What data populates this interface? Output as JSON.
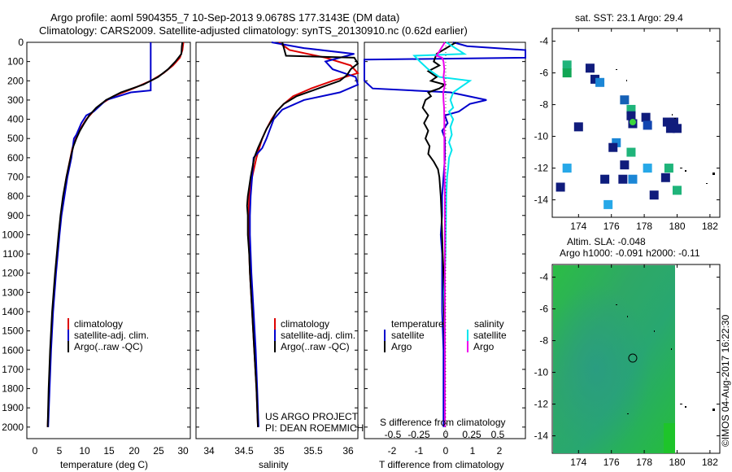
{
  "header": {
    "line1": "Argo profile: aoml 5904355_7 10-Sep-2013 9.0678S 177.3143E (DM data)",
    "line2": "Climatology: CARS2009. Satellite-adjusted climatology: synTS_20130910.nc (0.62d earlier)"
  },
  "colors": {
    "climatology": "#dd0000",
    "satellite": "#0000cc",
    "argo": "#000000",
    "sal_satellite": "#00e5ee",
    "sal_argo": "#ee00ee"
  },
  "panels": {
    "temperature": {
      "xlabel": "temperature (deg C)",
      "xticks": [
        "0",
        "5",
        "10",
        "15",
        "20",
        "25",
        "30"
      ],
      "legend": [
        "climatology",
        "satellite-adj. clim.",
        "Argo(..raw -QC)"
      ]
    },
    "salinity": {
      "xlabel": "salinity",
      "xticks": [
        "34",
        "34.5",
        "35",
        "35.5",
        "36"
      ],
      "legend": [
        "climatology",
        "satellite-adj. clim.",
        "Argo(..raw -QC)"
      ],
      "credit1": "US ARGO PROJECT",
      "credit2": "PI: DEAN ROEMMICH"
    },
    "difference": {
      "xlabel": "T difference from climatology",
      "toplabel": "S difference from climatology",
      "top_ticks": [
        "-0.5",
        "-0.25",
        "0",
        "0.25",
        "0.5"
      ],
      "bottom_ticks": [
        "-2",
        "-1",
        "0",
        "1",
        "2"
      ],
      "legend_temp_title": "temperature",
      "legend_sal_title": "salinity",
      "legend_temp": [
        "satellite",
        "Argo"
      ],
      "legend_sal": [
        "satellite",
        "Argo"
      ]
    },
    "yticks": [
      "0",
      "100",
      "200",
      "300",
      "400",
      "500",
      "600",
      "700",
      "800",
      "900",
      "1000",
      "1100",
      "1200",
      "1300",
      "1400",
      "1500",
      "1600",
      "1700",
      "1800",
      "1900",
      "2000"
    ]
  },
  "map_sst": {
    "title": "sat. SST: 23.1  Argo: 29.4",
    "yticks": [
      "-4",
      "-6",
      "-8",
      "-10",
      "-12",
      "-14"
    ],
    "xticks": [
      "174",
      "176",
      "178",
      "180",
      "182"
    ]
  },
  "map_sla": {
    "title1": "Altim. SLA: -0.048",
    "title2": "Argo h1000: -0.091  h2000: -0.11",
    "yticks": [
      "-4",
      "-6",
      "-8",
      "-10",
      "-12",
      "-14"
    ],
    "xticks": [
      "174",
      "176",
      "178",
      "180",
      "182"
    ]
  },
  "stamp": "©IMOS 04-Aug-2017 16:22:30",
  "chart_data": [
    {
      "type": "line",
      "panel": "temperature",
      "xlabel": "temperature (deg C)",
      "ylabel": "",
      "xlim": [
        -2,
        31
      ],
      "ylim": [
        2060,
        0
      ],
      "series": [
        {
          "name": "climatology",
          "color": "#dd0000",
          "depth": [
            0,
            40,
            80,
            120,
            160,
            200,
            240,
            280,
            320,
            360,
            400,
            450,
            500,
            550,
            600,
            700,
            800,
            900,
            1000,
            1200,
            1400,
            1600,
            1800,
            2000
          ],
          "values": [
            29.6,
            29.4,
            28.9,
            27.5,
            25.6,
            23.0,
            19.5,
            15.5,
            13.0,
            11.4,
            10.0,
            8.8,
            7.9,
            7.2,
            6.8,
            6.0,
            5.4,
            4.9,
            4.5,
            3.8,
            3.2,
            2.8,
            2.5,
            2.2
          ]
        },
        {
          "name": "satellite-adj. clim.",
          "color": "#0000cc",
          "depth": [
            0,
            250,
            260,
            300,
            360,
            380,
            420,
            480,
            500,
            600,
            700,
            800,
            900,
            1000,
            1200,
            1400,
            1600,
            1800,
            2000
          ],
          "values": [
            23.0,
            23.0,
            19.0,
            14.0,
            11.5,
            10.0,
            9.0,
            8.0,
            7.5,
            7.0,
            6.2,
            5.6,
            5.0,
            4.6,
            3.9,
            3.3,
            2.9,
            2.6,
            2.3
          ]
        },
        {
          "name": "Argo(..raw -QC)",
          "color": "#000000",
          "depth": [
            0,
            20,
            60,
            100,
            140,
            180,
            220,
            260,
            300,
            340,
            380,
            420,
            460,
            500,
            540,
            580,
            650,
            700,
            800,
            900,
            1000,
            1200,
            1400,
            1600,
            1800,
            2000
          ],
          "values": [
            29.4,
            29.3,
            29.2,
            28.0,
            26.5,
            24.5,
            21.5,
            17.0,
            14.0,
            12.0,
            10.6,
            9.6,
            8.7,
            8.0,
            7.4,
            7.0,
            6.4,
            6.0,
            5.3,
            4.8,
            4.4,
            3.7,
            3.1,
            2.7,
            2.4,
            2.2
          ]
        }
      ]
    },
    {
      "type": "line",
      "panel": "salinity",
      "xlabel": "salinity",
      "ylabel": "",
      "xlim": [
        33.8,
        36.05
      ],
      "ylim": [
        2060,
        0
      ],
      "series": [
        {
          "name": "climatology",
          "color": "#dd0000",
          "depth": [
            0,
            40,
            80,
            120,
            160,
            200,
            240,
            280,
            320,
            360,
            400,
            450,
            500,
            550,
            600,
            700,
            800,
            900,
            1000,
            1200,
            1400,
            1600,
            1800,
            2000
          ],
          "values": [
            34.95,
            35.1,
            35.6,
            35.95,
            36.05,
            35.7,
            35.4,
            35.15,
            35.02,
            34.92,
            34.85,
            34.78,
            34.72,
            34.68,
            34.64,
            34.58,
            34.54,
            34.53,
            34.53,
            34.55,
            34.58,
            34.61,
            34.64,
            34.66
          ]
        },
        {
          "name": "satellite-adj. clim.",
          "color": "#0000cc",
          "depth": [
            0,
            30,
            60,
            100,
            140,
            180,
            220,
            260,
            300,
            350,
            400,
            500,
            550,
            600,
            700,
            800,
            900,
            1000,
            1200,
            1400,
            1600,
            1800,
            2000
          ],
          "values": [
            34.85,
            35.3,
            36.0,
            35.6,
            35.7,
            36.02,
            36.05,
            35.8,
            35.3,
            35.0,
            34.88,
            34.78,
            34.72,
            34.6,
            34.58,
            34.56,
            34.55,
            34.55,
            34.57,
            34.6,
            34.63,
            34.65,
            34.67
          ]
        },
        {
          "name": "Argo(..raw -QC)",
          "color": "#000000",
          "depth": [
            0,
            70,
            80,
            110,
            140,
            170,
            200,
            240,
            280,
            320,
            360,
            400,
            450,
            500,
            550,
            600,
            700,
            800,
            850,
            900,
            1000,
            1100,
            1200,
            1400,
            1600,
            1800,
            2000
          ],
          "values": [
            35.0,
            35.05,
            36.0,
            36.05,
            35.95,
            35.9,
            35.8,
            35.5,
            35.2,
            35.02,
            34.92,
            34.86,
            34.78,
            34.72,
            34.66,
            34.61,
            34.56,
            34.52,
            34.51,
            34.52,
            34.52,
            34.54,
            34.55,
            34.58,
            34.61,
            34.64,
            34.66
          ]
        }
      ]
    },
    {
      "type": "line",
      "panel": "difference",
      "xlabel": "T difference from climatology",
      "ylabel": "",
      "xlim": [
        -2.9,
        2.9
      ],
      "ylim": [
        2060,
        0
      ],
      "series": [
        {
          "name": "satellite",
          "quantity": "temperature",
          "color": "#0000cc",
          "depth": [
            0,
            20,
            40,
            80,
            90,
            120,
            160,
            200,
            240,
            260,
            300,
            320,
            360,
            380,
            420,
            460,
            500,
            600,
            700,
            800,
            900,
            1000,
            1100,
            1200,
            1300,
            1400,
            1600,
            1800,
            2000
          ],
          "values": [
            0.3,
            0.8,
            2.9,
            2.9,
            -2.9,
            -3.0,
            -2.9,
            -2.9,
            -2.6,
            0.2,
            1.5,
            0.9,
            0.5,
            0.0,
            0.1,
            -0.1,
            0.0,
            0.0,
            -0.05,
            -0.1,
            -0.1,
            -0.15,
            -0.1,
            -0.1,
            -0.1,
            -0.1,
            -0.05,
            -0.05,
            -0.05
          ]
        },
        {
          "name": "Argo",
          "quantity": "temperature",
          "color": "#000000",
          "depth": [
            0,
            60,
            100,
            120,
            150,
            180,
            200,
            220,
            240,
            260,
            280,
            300,
            340,
            380,
            420,
            460,
            500,
            540,
            580,
            620,
            660,
            700,
            800,
            900,
            1000,
            1100,
            1200,
            1400,
            1600,
            1800,
            2000
          ],
          "values": [
            0.4,
            -0.3,
            -0.4,
            -0.2,
            -0.6,
            -0.3,
            -0.5,
            0.0,
            -0.2,
            -0.6,
            -0.5,
            -0.7,
            -0.8,
            -0.6,
            -0.75,
            -0.6,
            -0.7,
            -0.55,
            -0.6,
            -0.4,
            -0.25,
            -0.2,
            -0.15,
            -0.12,
            -0.1,
            -0.08,
            -0.05,
            -0.03,
            0.0,
            0.0,
            0.0
          ]
        },
        {
          "name": "satellite",
          "quantity": "salinity",
          "color": "#00e5ee",
          "depth": [
            0,
            60,
            70,
            100,
            140,
            180,
            200,
            240,
            260,
            300,
            340,
            360,
            400,
            440,
            480,
            520,
            560,
            600,
            650,
            700,
            800,
            900,
            1000,
            1100,
            1200,
            1300,
            1400,
            1600,
            1800,
            2000
          ],
          "values": [
            0.05,
            0.7,
            -1.1,
            -0.9,
            -0.6,
            -0.2,
            0.9,
            0.5,
            0.3,
            0.2,
            0.3,
            0.15,
            0.3,
            0.2,
            0.25,
            0.15,
            0.25,
            0.15,
            0.12,
            0.08,
            0.05,
            0.04,
            0.03,
            0.02,
            0.0,
            -0.02,
            0.0,
            0.0,
            0.0,
            0.0
          ]
        },
        {
          "name": "Argo",
          "quantity": "salinity",
          "color": "#ee00ee",
          "depth": [
            0,
            70,
            80,
            100,
            140,
            180,
            220,
            260,
            300,
            340,
            400,
            500,
            600,
            700,
            800,
            900,
            1000,
            1100,
            1200,
            1400,
            1600,
            1800,
            2000
          ],
          "values": [
            0.0,
            -0.3,
            -0.1,
            -0.05,
            -0.02,
            -0.05,
            0.0,
            -0.06,
            -0.05,
            -0.03,
            -0.02,
            -0.02,
            -0.02,
            -0.01,
            0.0,
            0.0,
            0.0,
            0.0,
            0.0,
            0.0,
            0.0,
            0.0,
            0.0
          ]
        }
      ]
    },
    {
      "type": "scatter",
      "panel": "map_sst",
      "title": "sat. SST: 23.1  Argo: 29.4",
      "xlim": [
        172.4,
        182.6
      ],
      "ylim": [
        -15.1,
        -3.2
      ],
      "points": [
        {
          "x": 173.3,
          "y": -5.5,
          "c": "#1fb47a"
        },
        {
          "x": 173.3,
          "y": -6.0,
          "c": "#11a655"
        },
        {
          "x": 174.7,
          "y": -5.7,
          "c": "#101c7c"
        },
        {
          "x": 175.0,
          "y": -6.4,
          "c": "#0d1d7d"
        },
        {
          "x": 175.3,
          "y": -6.6,
          "c": "#1b86d6"
        },
        {
          "x": 176.8,
          "y": -7.7,
          "c": "#1560b6"
        },
        {
          "x": 177.2,
          "y": -8.3,
          "c": "#1fb47a"
        },
        {
          "x": 177.2,
          "y": -8.7,
          "c": "#101c7c"
        },
        {
          "x": 177.3,
          "y": -9.2,
          "c": "#101c7c"
        },
        {
          "x": 178.1,
          "y": -8.8,
          "c": "#101c7c"
        },
        {
          "x": 178.2,
          "y": -9.3,
          "c": "#1246b0"
        },
        {
          "x": 179.4,
          "y": -9.1,
          "c": "#101c7c"
        },
        {
          "x": 179.8,
          "y": -9.1,
          "c": "#101c7c"
        },
        {
          "x": 179.6,
          "y": -9.5,
          "c": "#101c7c"
        },
        {
          "x": 180.0,
          "y": -9.5,
          "c": "#101c7c"
        },
        {
          "x": 174.0,
          "y": -9.4,
          "c": "#101c7c"
        },
        {
          "x": 176.3,
          "y": -10.4,
          "c": "#1b86d6"
        },
        {
          "x": 176.1,
          "y": -10.7,
          "c": "#101c7c"
        },
        {
          "x": 177.2,
          "y": -11.0,
          "c": "#1fb47a"
        },
        {
          "x": 173.3,
          "y": -12.0,
          "c": "#27a8e8"
        },
        {
          "x": 176.8,
          "y": -11.8,
          "c": "#101c7c"
        },
        {
          "x": 178.2,
          "y": -12.0,
          "c": "#27a8e8"
        },
        {
          "x": 179.5,
          "y": -12.0,
          "c": "#1fb47a"
        },
        {
          "x": 175.6,
          "y": -12.7,
          "c": "#0d1d7d"
        },
        {
          "x": 176.7,
          "y": -12.7,
          "c": "#101c7c"
        },
        {
          "x": 177.3,
          "y": -12.7,
          "c": "#1b86d6"
        },
        {
          "x": 179.3,
          "y": -12.6,
          "c": "#101c7c"
        },
        {
          "x": 172.9,
          "y": -13.2,
          "c": "#101c7c"
        },
        {
          "x": 178.6,
          "y": -13.7,
          "c": "#101c7c"
        },
        {
          "x": 180.0,
          "y": -13.4,
          "c": "#1fb47a"
        },
        {
          "x": 175.8,
          "y": -14.3,
          "c": "#27a8e8"
        }
      ],
      "argo_location": {
        "x": 177.3,
        "y": -9.1
      }
    },
    {
      "type": "heatmap",
      "panel": "map_sla",
      "title": "Altim. SLA: -0.048  Argo h1000: -0.091  h2000: -0.11",
      "xlim": [
        172.4,
        182.6
      ],
      "ylim": [
        -15.1,
        -3.2
      ],
      "argo_location": {
        "x": 177.3,
        "y": -9.1
      }
    }
  ]
}
